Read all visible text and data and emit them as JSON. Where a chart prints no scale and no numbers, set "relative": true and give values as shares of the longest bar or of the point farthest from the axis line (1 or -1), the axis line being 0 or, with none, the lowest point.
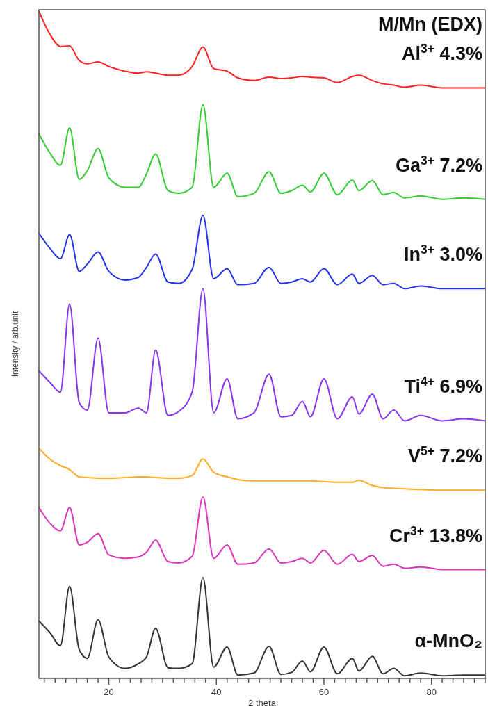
{
  "chart_data": {
    "type": "line",
    "relative": true,
    "xlabel": "2 theta",
    "ylabel": "Intensity / arb.unit",
    "legend_title": "M/Mn (EDX)",
    "xlim": [
      7,
      90
    ],
    "xticks": [
      {
        "value": 8,
        "label": null
      },
      {
        "value": 10,
        "label": null
      },
      {
        "value": 12,
        "label": null
      },
      {
        "value": 14,
        "label": null
      },
      {
        "value": 16,
        "label": null
      },
      {
        "value": 18,
        "label": null
      },
      20,
      {
        "value": 22,
        "label": null
      },
      {
        "value": 24,
        "label": null
      },
      {
        "value": 26,
        "label": null
      },
      {
        "value": 28,
        "label": null
      },
      {
        "value": 30,
        "label": null
      },
      {
        "value": 32,
        "label": null
      },
      {
        "value": 34,
        "label": null
      },
      {
        "value": 36,
        "label": null
      },
      {
        "value": 38,
        "label": null
      },
      40,
      {
        "value": 42,
        "label": null
      },
      {
        "value": 44,
        "label": null
      },
      {
        "value": 46,
        "label": null
      },
      {
        "value": 48,
        "label": null
      },
      {
        "value": 50,
        "label": null
      },
      {
        "value": 52,
        "label": null
      },
      {
        "value": 54,
        "label": null
      },
      {
        "value": 56,
        "label": null
      },
      {
        "value": 58,
        "label": null
      },
      60,
      {
        "value": 62,
        "label": null
      },
      {
        "value": 64,
        "label": null
      },
      {
        "value": 66,
        "label": null
      },
      {
        "value": 68,
        "label": null
      },
      {
        "value": 70,
        "label": null
      },
      {
        "value": 72,
        "label": null
      },
      {
        "value": 74,
        "label": null
      },
      {
        "value": 76,
        "label": null
      },
      {
        "value": 78,
        "label": null
      },
      80,
      {
        "value": 82,
        "label": null
      },
      {
        "value": 84,
        "label": null
      },
      {
        "value": 86,
        "label": null
      },
      {
        "value": 88,
        "label": null
      },
      {
        "value": 90,
        "label": null
      }
    ],
    "x": [
      7,
      9,
      11,
      12.7,
      14.5,
      16,
      18,
      20,
      23,
      25.5,
      27,
      28.7,
      31,
      33,
      35.5,
      37.5,
      39.5,
      42,
      44,
      47,
      49.8,
      52,
      54,
      56,
      57.5,
      60,
      62.5,
      65.3,
      66.5,
      69,
      71,
      73,
      75,
      78,
      82,
      86,
      90
    ],
    "series": [
      {
        "name": "Al$^{3+}$ 4.3%",
        "color": "#ff2020",
        "values": [
          1.0,
          0.966,
          0.947,
          0.948,
          0.926,
          0.921,
          0.924,
          0.917,
          0.91,
          0.907,
          0.909,
          0.907,
          0.904,
          0.904,
          0.917,
          0.946,
          0.914,
          0.91,
          0.9,
          0.896,
          0.901,
          0.899,
          0.9,
          0.902,
          0.901,
          0.9,
          0.893,
          0.902,
          0.904,
          0.896,
          0.891,
          0.889,
          0.886,
          0.889,
          0.885,
          0.885,
          0.885
        ]
      },
      {
        "name": "Ga$^{3+}$ 7.2%",
        "color": "#33cc33",
        "values": [
          0.816,
          0.788,
          0.769,
          0.825,
          0.748,
          0.761,
          0.794,
          0.75,
          0.736,
          0.736,
          0.756,
          0.786,
          0.731,
          0.727,
          0.736,
          0.86,
          0.736,
          0.757,
          0.722,
          0.727,
          0.759,
          0.727,
          0.731,
          0.739,
          0.729,
          0.757,
          0.725,
          0.747,
          0.731,
          0.746,
          0.725,
          0.728,
          0.72,
          0.723,
          0.718,
          0.72,
          0.718
        ]
      },
      {
        "name": "In$^{3+}$ 3.0%",
        "color": "#2233ee",
        "values": [
          0.667,
          0.645,
          0.629,
          0.665,
          0.61,
          0.621,
          0.639,
          0.61,
          0.597,
          0.601,
          0.616,
          0.636,
          0.594,
          0.592,
          0.613,
          0.694,
          0.599,
          0.614,
          0.59,
          0.592,
          0.616,
          0.592,
          0.594,
          0.599,
          0.594,
          0.614,
          0.59,
          0.606,
          0.592,
          0.604,
          0.59,
          0.592,
          0.584,
          0.588,
          0.584,
          0.584,
          0.584
        ]
      },
      {
        "name": "Ti$^{4+}$ 6.9%",
        "color": "#8833ee",
        "values": [
          0.461,
          0.444,
          0.429,
          0.561,
          0.413,
          0.402,
          0.51,
          0.398,
          0.398,
          0.405,
          0.398,
          0.492,
          0.394,
          0.4,
          0.429,
          0.584,
          0.398,
          0.449,
          0.389,
          0.398,
          0.456,
          0.392,
          0.394,
          0.415,
          0.392,
          0.449,
          0.389,
          0.422,
          0.396,
          0.426,
          0.389,
          0.402,
          0.386,
          0.394,
          0.386,
          0.389,
          0.386
        ]
      },
      {
        "name": "V$^{5+}$  7.2%",
        "color": "#ffaa22",
        "values": [
          0.345,
          0.329,
          0.319,
          0.313,
          0.302,
          0.301,
          0.3,
          0.3,
          0.301,
          0.302,
          0.302,
          0.301,
          0.3,
          0.3,
          0.304,
          0.329,
          0.309,
          0.302,
          0.298,
          0.296,
          0.296,
          0.296,
          0.296,
          0.296,
          0.296,
          0.295,
          0.294,
          0.294,
          0.297,
          0.289,
          0.286,
          0.285,
          0.284,
          0.283,
          0.282,
          0.282,
          0.282
        ]
      },
      {
        "name": "Cr$^{3+}$ 13.8%",
        "color": "#dd33bb",
        "values": [
          0.256,
          0.233,
          0.221,
          0.256,
          0.2,
          0.204,
          0.217,
          0.185,
          0.18,
          0.182,
          0.189,
          0.207,
          0.175,
          0.173,
          0.183,
          0.272,
          0.18,
          0.2,
          0.171,
          0.173,
          0.194,
          0.173,
          0.175,
          0.18,
          0.173,
          0.192,
          0.171,
          0.186,
          0.175,
          0.184,
          0.168,
          0.171,
          0.165,
          0.167,
          0.163,
          0.163,
          0.163
        ]
      },
      {
        "name": "α-MnO₂",
        "color": "#333333",
        "values": [
          0.086,
          0.069,
          0.049,
          0.138,
          0.043,
          0.03,
          0.088,
          0.032,
          0.015,
          0.022,
          0.032,
          0.075,
          0.016,
          0.015,
          0.022,
          0.151,
          0.017,
          0.047,
          0.005,
          0.008,
          0.048,
          0.006,
          0.009,
          0.026,
          0.01,
          0.047,
          0.007,
          0.03,
          0.011,
          0.033,
          0.007,
          0.015,
          0.004,
          0.008,
          0.004,
          0.005,
          0.005
        ]
      }
    ]
  }
}
